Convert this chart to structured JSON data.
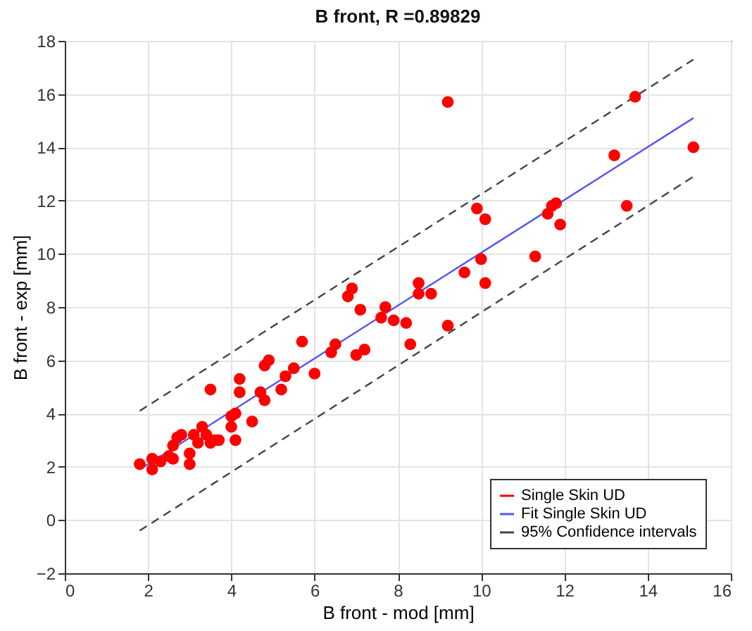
{
  "chart_data": {
    "type": "scatter",
    "title": "B front, R =0.89829",
    "xlabel": "B front - mod [mm]",
    "ylabel": "B front - exp [mm]",
    "xlim": [
      0,
      16
    ],
    "xticks": [
      0,
      2,
      4,
      6,
      8,
      10,
      12,
      14,
      16
    ],
    "ylim": [
      -2,
      18
    ],
    "yticks": [
      -2,
      0,
      2,
      4,
      6,
      8,
      10,
      12,
      14,
      16,
      18
    ],
    "grid": true,
    "legend": "bottom right",
    "series": [
      {
        "name": "Single Skin UD",
        "marker": "circle",
        "color": "#ff0000",
        "x": [
          1.8,
          2.1,
          2.1,
          2.3,
          2.5,
          2.6,
          2.6,
          2.7,
          2.8,
          3.0,
          3.0,
          3.1,
          3.2,
          3.3,
          3.4,
          3.5,
          3.5,
          3.6,
          3.7,
          4.0,
          4.0,
          4.1,
          4.1,
          4.2,
          4.2,
          4.5,
          4.7,
          4.8,
          4.8,
          4.9,
          5.2,
          5.3,
          5.5,
          5.7,
          6.0,
          6.4,
          6.5,
          6.8,
          6.9,
          7.0,
          7.1,
          7.2,
          7.6,
          7.7,
          7.9,
          8.2,
          8.3,
          8.5,
          8.5,
          8.8,
          9.2,
          9.2,
          9.6,
          9.9,
          10.0,
          10.1,
          10.1,
          11.3,
          11.6,
          11.7,
          11.8,
          11.9,
          13.2,
          13.5,
          13.7,
          15.1
        ],
        "values": [
          2.1,
          1.9,
          2.3,
          2.2,
          2.4,
          2.3,
          2.8,
          3.1,
          3.2,
          2.5,
          2.1,
          3.2,
          2.9,
          3.5,
          3.2,
          2.9,
          4.9,
          3.0,
          3.0,
          3.5,
          3.9,
          3.0,
          4.0,
          4.8,
          5.3,
          3.7,
          4.8,
          4.5,
          5.8,
          6.0,
          4.9,
          5.4,
          5.7,
          6.7,
          5.5,
          6.3,
          6.6,
          8.4,
          8.7,
          6.2,
          7.9,
          6.4,
          7.6,
          8.0,
          7.5,
          7.4,
          6.6,
          8.5,
          8.9,
          8.5,
          7.3,
          15.7,
          9.3,
          11.7,
          9.8,
          11.3,
          8.9,
          9.9,
          11.5,
          11.8,
          11.9,
          11.1,
          13.7,
          11.8,
          15.9,
          14.0
        ]
      },
      {
        "name": "Fit Single Skin UD",
        "type": "line",
        "marker": "none",
        "color": "#5555ee",
        "x": [
          1.8,
          15.1
        ],
        "values": [
          1.9,
          15.1
        ]
      },
      {
        "name": "95% Confidence intervals",
        "type": "line",
        "marker": "none",
        "line_style": "dashed",
        "color": "#444444",
        "x": [
          1.8,
          15.1
        ],
        "values": [
          4.1,
          17.3
        ]
      },
      {
        "type": "line",
        "marker": "none",
        "line_style": "dashed",
        "color": "#444444",
        "x": [
          1.8,
          15.1
        ],
        "values": [
          -0.4,
          12.9
        ]
      }
    ]
  }
}
